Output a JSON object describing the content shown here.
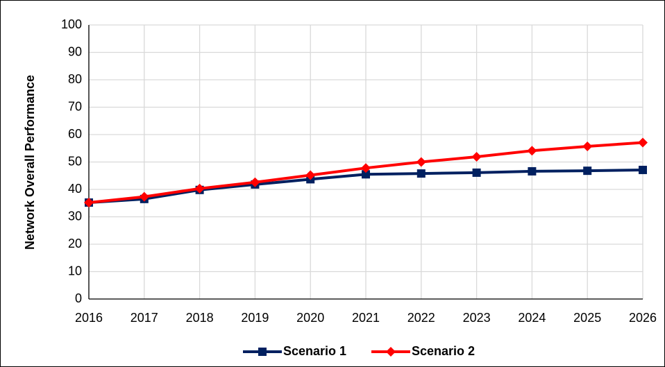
{
  "chart_data": {
    "type": "line",
    "ylabel": "Network Overall Performance",
    "x": [
      2016,
      2017,
      2018,
      2019,
      2020,
      2021,
      2022,
      2023,
      2024,
      2025,
      2026
    ],
    "series": [
      {
        "name": "Scenario 1",
        "color": "#002060",
        "marker": "square",
        "values": [
          35.2,
          36.5,
          39.8,
          41.8,
          43.7,
          45.5,
          45.8,
          46.1,
          46.6,
          46.8,
          47.1
        ]
      },
      {
        "name": "Scenario 2",
        "color": "#ff0000",
        "marker": "diamond",
        "values": [
          35.2,
          37.3,
          40.3,
          42.6,
          45.2,
          47.8,
          50.0,
          51.9,
          54.1,
          55.7,
          57.1
        ]
      }
    ],
    "xlim": [
      2016,
      2026
    ],
    "xticks": [
      2016,
      2017,
      2018,
      2019,
      2020,
      2021,
      2022,
      2023,
      2024,
      2025,
      2026
    ],
    "ylim": [
      0,
      100
    ],
    "yticks": [
      0,
      10,
      20,
      30,
      40,
      50,
      60,
      70,
      80,
      90,
      100
    ],
    "grid": true,
    "legend": "bottom"
  }
}
